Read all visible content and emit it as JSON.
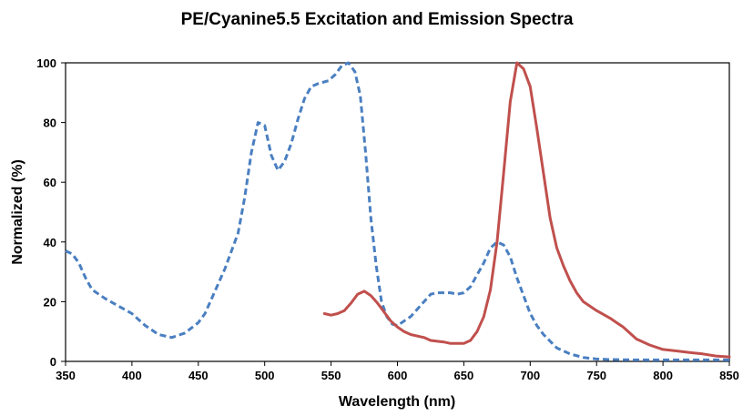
{
  "chart_data": {
    "type": "line",
    "title": "PE/Cyanine5.5 Excitation and Emission Spectra",
    "xlabel": "Wavelength (nm)",
    "ylabel": "Normalized (%)",
    "xlim": [
      350,
      850
    ],
    "ylim": [
      0,
      100
    ],
    "x_ticks": [
      350,
      400,
      450,
      500,
      550,
      600,
      650,
      700,
      750,
      800,
      850
    ],
    "y_ticks": [
      0,
      20,
      40,
      60,
      80,
      100
    ],
    "grid": false,
    "legend": "none",
    "series": [
      {
        "style": "dashed",
        "color": "#4a7fc1",
        "points": [
          [
            350,
            37
          ],
          [
            355,
            36
          ],
          [
            360,
            33
          ],
          [
            365,
            28
          ],
          [
            370,
            24
          ],
          [
            380,
            21
          ],
          [
            390,
            18.5
          ],
          [
            400,
            16
          ],
          [
            405,
            14
          ],
          [
            410,
            12
          ],
          [
            420,
            9
          ],
          [
            430,
            8
          ],
          [
            440,
            9.5
          ],
          [
            450,
            13
          ],
          [
            455,
            16
          ],
          [
            460,
            21
          ],
          [
            470,
            31
          ],
          [
            480,
            43
          ],
          [
            485,
            55
          ],
          [
            490,
            70
          ],
          [
            495,
            80
          ],
          [
            500,
            79
          ],
          [
            505,
            69
          ],
          [
            510,
            64
          ],
          [
            515,
            67
          ],
          [
            520,
            73
          ],
          [
            525,
            81
          ],
          [
            530,
            88
          ],
          [
            535,
            92
          ],
          [
            540,
            93
          ],
          [
            548,
            94
          ],
          [
            553,
            96
          ],
          [
            558,
            99
          ],
          [
            563,
            100
          ],
          [
            568,
            97
          ],
          [
            572,
            89
          ],
          [
            576,
            70
          ],
          [
            580,
            48
          ],
          [
            584,
            32
          ],
          [
            588,
            20
          ],
          [
            592,
            15
          ],
          [
            596,
            12.5
          ],
          [
            600,
            12
          ],
          [
            610,
            15
          ],
          [
            620,
            20
          ],
          [
            625,
            22.5
          ],
          [
            630,
            23
          ],
          [
            640,
            23
          ],
          [
            645,
            22.5
          ],
          [
            650,
            23
          ],
          [
            655,
            25
          ],
          [
            660,
            29
          ],
          [
            665,
            33
          ],
          [
            670,
            38
          ],
          [
            675,
            40
          ],
          [
            680,
            39
          ],
          [
            685,
            35
          ],
          [
            690,
            28
          ],
          [
            695,
            22
          ],
          [
            700,
            16
          ],
          [
            705,
            12
          ],
          [
            710,
            9
          ],
          [
            720,
            4.5
          ],
          [
            730,
            2.5
          ],
          [
            740,
            1.3
          ],
          [
            750,
            0.8
          ],
          [
            760,
            0.6
          ],
          [
            780,
            0.5
          ],
          [
            800,
            0.5
          ],
          [
            825,
            0.5
          ],
          [
            850,
            0.5
          ]
        ]
      },
      {
        "style": "solid",
        "color": "#c0504d",
        "points": [
          [
            545,
            16
          ],
          [
            550,
            15.5
          ],
          [
            555,
            16
          ],
          [
            560,
            17
          ],
          [
            565,
            19.5
          ],
          [
            570,
            22.5
          ],
          [
            575,
            23.5
          ],
          [
            580,
            22
          ],
          [
            585,
            19.5
          ],
          [
            590,
            16.5
          ],
          [
            595,
            13.5
          ],
          [
            600,
            11.5
          ],
          [
            605,
            10
          ],
          [
            610,
            9
          ],
          [
            620,
            8
          ],
          [
            625,
            7
          ],
          [
            635,
            6.5
          ],
          [
            640,
            6
          ],
          [
            650,
            6
          ],
          [
            655,
            7
          ],
          [
            660,
            10
          ],
          [
            665,
            15
          ],
          [
            670,
            24
          ],
          [
            675,
            40
          ],
          [
            680,
            63
          ],
          [
            685,
            87
          ],
          [
            690,
            100
          ],
          [
            695,
            98
          ],
          [
            700,
            92
          ],
          [
            705,
            78
          ],
          [
            710,
            63
          ],
          [
            715,
            48
          ],
          [
            720,
            38
          ],
          [
            725,
            32
          ],
          [
            730,
            27
          ],
          [
            735,
            23
          ],
          [
            740,
            20
          ],
          [
            750,
            17
          ],
          [
            760,
            14.5
          ],
          [
            765,
            13
          ],
          [
            770,
            11.5
          ],
          [
            775,
            9.5
          ],
          [
            780,
            7.5
          ],
          [
            790,
            5.5
          ],
          [
            800,
            4
          ],
          [
            810,
            3.5
          ],
          [
            820,
            3
          ],
          [
            830,
            2.5
          ],
          [
            840,
            1.8
          ],
          [
            850,
            1.5
          ]
        ]
      }
    ]
  }
}
